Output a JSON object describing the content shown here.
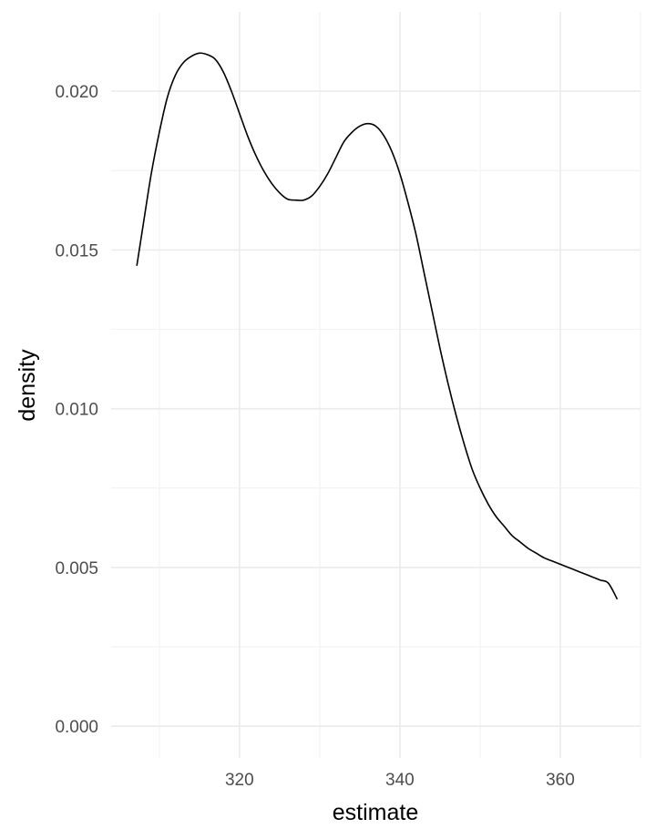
{
  "chart_data": {
    "type": "line",
    "title": "",
    "xlabel": "estimate",
    "ylabel": "density",
    "xlim": [
      304,
      370
    ],
    "ylim": [
      -0.001,
      0.0225
    ],
    "x_ticks": [
      320,
      340,
      360
    ],
    "y_ticks": [
      0.0,
      0.005,
      0.01,
      0.015,
      0.02
    ],
    "x_tick_labels": [
      "320",
      "340",
      "360"
    ],
    "y_tick_labels": [
      "0.000",
      "0.005",
      "0.010",
      "0.015",
      "0.020"
    ],
    "grid": true,
    "legend": "none",
    "colors": {
      "line": "#000000",
      "grid_major": "#ebebeb",
      "grid_minor": "#f3f3f3",
      "tick_text": "#4d4d4d",
      "background": "#ffffff"
    },
    "series": [
      {
        "x": [
          307.2,
          308,
          309,
          310,
          311,
          312,
          313,
          314,
          315,
          316,
          317,
          318,
          319,
          320,
          321,
          322,
          323,
          324,
          325,
          326,
          327,
          328,
          329,
          330,
          331,
          332,
          333,
          334,
          335,
          336,
          337,
          338,
          339,
          340,
          341,
          342,
          343,
          344,
          345,
          346,
          347,
          348,
          349,
          350,
          351,
          352,
          353,
          354,
          355,
          356,
          357,
          358,
          359,
          360,
          361,
          362,
          363,
          364,
          365,
          366,
          367.1
        ],
        "y": [
          0.0145,
          0.0158,
          0.0174,
          0.0187,
          0.0198,
          0.0205,
          0.0209,
          0.0211,
          0.0212,
          0.02115,
          0.021,
          0.0206,
          0.02,
          0.0193,
          0.0186,
          0.018,
          0.0175,
          0.0171,
          0.0168,
          0.0166,
          0.01657,
          0.01657,
          0.0167,
          0.017,
          0.0174,
          0.0179,
          0.0184,
          0.0187,
          0.0189,
          0.01898,
          0.0189,
          0.0186,
          0.0181,
          0.0174,
          0.0165,
          0.0155,
          0.0143,
          0.0131,
          0.0119,
          0.0108,
          0.0098,
          0.0089,
          0.0081,
          0.0075,
          0.007,
          0.0066,
          0.0063,
          0.006,
          0.0058,
          0.0056,
          0.00545,
          0.0053,
          0.0052,
          0.0051,
          0.005,
          0.0049,
          0.0048,
          0.0047,
          0.0046,
          0.0045,
          0.004
        ]
      }
    ]
  }
}
